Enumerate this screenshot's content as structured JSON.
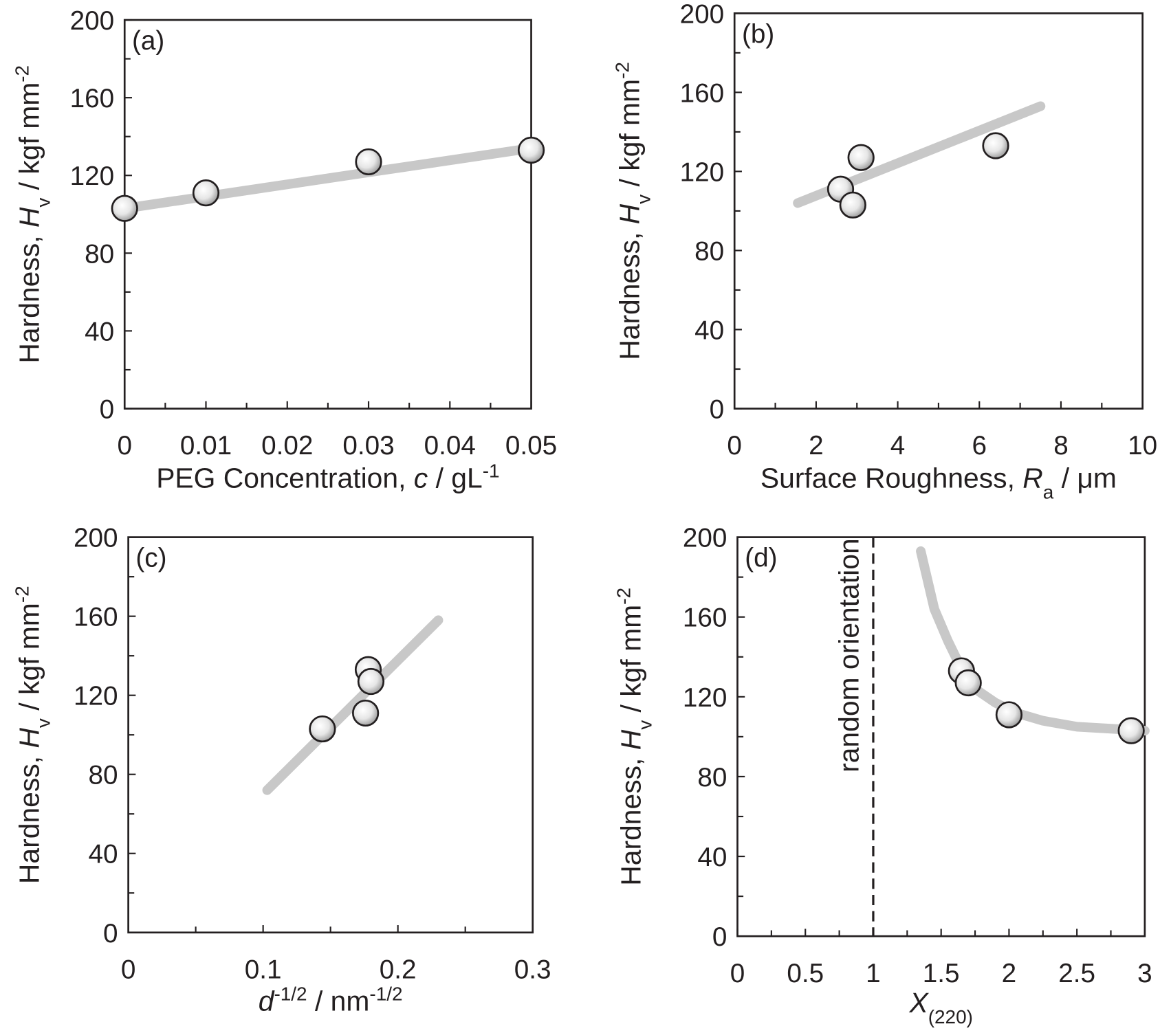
{
  "chart_data": [
    {
      "type": "scatter",
      "panel": "(a)",
      "ylabel": [
        [
          "Hardness, ",
          ""
        ],
        [
          "H",
          "i"
        ],
        [
          "v",
          "sub"
        ],
        [
          " / kgf mm",
          ""
        ],
        [
          "-2",
          "sup"
        ]
      ],
      "xlabel": [
        [
          "PEG Concentration, ",
          ""
        ],
        [
          "c",
          "i"
        ],
        [
          " / gL",
          ""
        ],
        [
          "-1",
          "sup"
        ]
      ],
      "x": [
        0,
        0.01,
        0.03,
        0.05
      ],
      "values": [
        103,
        111,
        127,
        133
      ],
      "fit": {
        "x": [
          0,
          0.05
        ],
        "values": [
          103,
          134
        ]
      },
      "xlim": [
        0,
        0.05
      ],
      "xticks": [
        0,
        0.01,
        0.02,
        0.03,
        0.04,
        0.05
      ],
      "ylim": [
        0,
        200
      ],
      "yticks": [
        0,
        40,
        80,
        120,
        160,
        200
      ]
    },
    {
      "type": "scatter",
      "panel": "(b)",
      "ylabel": [
        [
          "Hardness, ",
          ""
        ],
        [
          "H",
          "i"
        ],
        [
          "v",
          "sub"
        ],
        [
          " / kgf mm",
          ""
        ],
        [
          "-2",
          "sup"
        ]
      ],
      "xlabel": [
        [
          "Surface Roughness, ",
          ""
        ],
        [
          "R",
          "i"
        ],
        [
          "a",
          "sub"
        ],
        [
          " / μm",
          ""
        ]
      ],
      "x": [
        2.6,
        2.9,
        3.1,
        6.4
      ],
      "values": [
        111,
        103,
        127,
        133
      ],
      "fit": {
        "x": [
          1.55,
          7.5
        ],
        "values": [
          104,
          153
        ]
      },
      "xlim": [
        0,
        10
      ],
      "xticks": [
        0,
        2,
        4,
        6,
        8,
        10
      ],
      "ylim": [
        0,
        200
      ],
      "yticks": [
        0,
        40,
        80,
        120,
        160,
        200
      ]
    },
    {
      "type": "scatter",
      "panel": "(c)",
      "ylabel": [
        [
          "Hardness, ",
          ""
        ],
        [
          "H",
          "i"
        ],
        [
          "v",
          "sub"
        ],
        [
          " / kgf mm",
          ""
        ],
        [
          "-2",
          "sup"
        ]
      ],
      "xlabel": [
        [
          "d",
          "i"
        ],
        [
          "-1/2",
          "sup"
        ],
        [
          " / nm",
          ""
        ],
        [
          "-1/2",
          "sup"
        ]
      ],
      "x": [
        0.144,
        0.176,
        0.178,
        0.18
      ],
      "values": [
        103,
        111,
        133,
        127
      ],
      "fit": {
        "x": [
          0.103,
          0.23
        ],
        "values": [
          72,
          158
        ]
      },
      "xlim": [
        0,
        0.3
      ],
      "xticks": [
        0,
        0.1,
        0.2,
        0.3
      ],
      "ylim": [
        0,
        200
      ],
      "yticks": [
        0,
        40,
        80,
        120,
        160,
        200
      ]
    },
    {
      "type": "scatter",
      "panel": "(d)",
      "ylabel": [
        [
          "Hardness, ",
          ""
        ],
        [
          "H",
          "i"
        ],
        [
          "v",
          "sub"
        ],
        [
          " / kgf mm",
          ""
        ],
        [
          "-2",
          "sup"
        ]
      ],
      "xlabel": [
        [
          "X",
          "i"
        ],
        [
          "(220)",
          "sub"
        ]
      ],
      "x": [
        1.65,
        1.7,
        2.0,
        2.9
      ],
      "values": [
        133,
        127,
        111,
        103
      ],
      "fit": {
        "x": [
          1.35,
          1.45,
          1.55,
          1.65,
          1.75,
          1.9,
          2.05,
          2.25,
          2.5,
          2.75,
          3.0
        ],
        "values": [
          193,
          164,
          148,
          134,
          124,
          117,
          112,
          108,
          105,
          104,
          103
        ]
      },
      "vline": 1,
      "annotation": "random orientation",
      "xlim": [
        0,
        3
      ],
      "xticks": [
        0,
        0.5,
        1,
        1.5,
        2,
        2.5,
        3
      ],
      "ylim": [
        0,
        200
      ],
      "yticks": [
        0,
        40,
        80,
        120,
        160,
        200
      ]
    }
  ]
}
